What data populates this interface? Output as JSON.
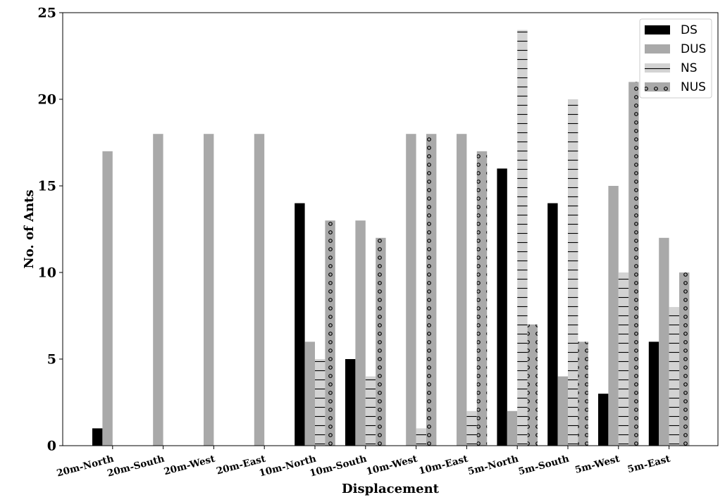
{
  "chart_data": {
    "type": "bar",
    "categories": [
      "20m-North",
      "20m-South",
      "20m-West",
      "20m-East",
      "10m-North",
      "10m-South",
      "10m-West",
      "10m-East",
      "5m-North",
      "5m-South",
      "5m-West",
      "5m-East"
    ],
    "series": [
      {
        "name": "DS",
        "color": "#000000",
        "pattern": "solid",
        "values": [
          1,
          0,
          0,
          0,
          14,
          5,
          0,
          0,
          16,
          14,
          3,
          6
        ]
      },
      {
        "name": "DUS",
        "color": "#a9a9a9",
        "pattern": "solid",
        "values": [
          17,
          18,
          18,
          18,
          6,
          13,
          18,
          18,
          2,
          4,
          15,
          12
        ]
      },
      {
        "name": "NS",
        "color": "#d3d3d3",
        "pattern": "hlines",
        "values": [
          0,
          0,
          0,
          0,
          5,
          4,
          1,
          2,
          24,
          20,
          10,
          8
        ]
      },
      {
        "name": "NUS",
        "color": "#a9a9a9",
        "pattern": "circles",
        "values": [
          0,
          0,
          0,
          0,
          13,
          12,
          18,
          17,
          7,
          6,
          21,
          10
        ]
      }
    ],
    "title": "",
    "xlabel": "Displacement",
    "ylabel": "No. of Ants",
    "ylim": [
      0,
      25
    ],
    "yticks": [
      0,
      5,
      10,
      15,
      20,
      25
    ],
    "grid": false,
    "legend_position": "top-right"
  }
}
